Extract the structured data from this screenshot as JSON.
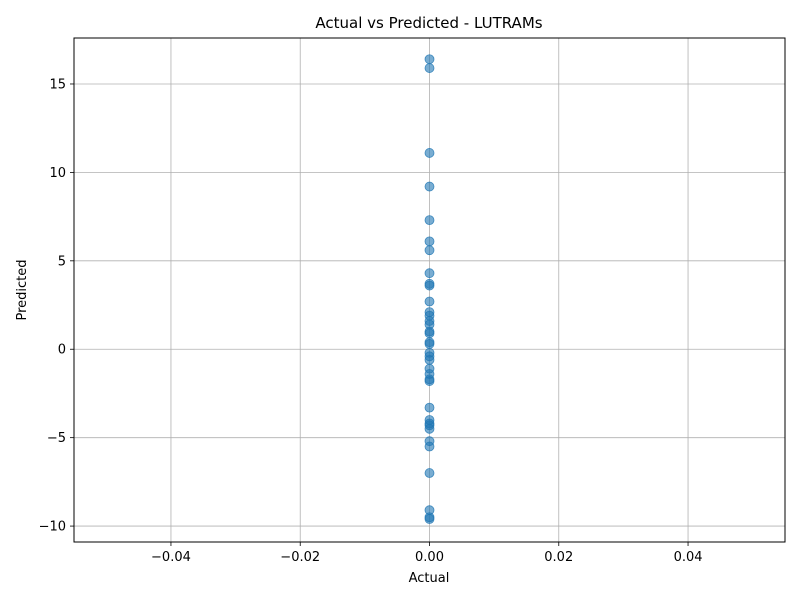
{
  "chart_data": {
    "type": "scatter",
    "title": "Actual vs Predicted - LUTRAMs",
    "xlabel": "Actual",
    "ylabel": "Predicted",
    "xlim": [
      -0.055,
      0.055
    ],
    "ylim": [
      -10.9,
      17.6
    ],
    "xticks": [
      -0.04,
      -0.02,
      0.0,
      0.02,
      0.04
    ],
    "xtick_labels": [
      "−0.04",
      "−0.02",
      "0.00",
      "0.02",
      "0.04"
    ],
    "yticks": [
      -10,
      -5,
      0,
      5,
      10,
      15
    ],
    "ytick_labels": [
      "−10",
      "−5",
      "0",
      "5",
      "10",
      "15"
    ],
    "grid": true,
    "legend": "none",
    "marker_color": "#1f77b4",
    "marker_alpha": 0.6,
    "points": [
      {
        "x": 0,
        "y": 16.4
      },
      {
        "x": 0,
        "y": 15.9
      },
      {
        "x": 0,
        "y": 11.1
      },
      {
        "x": 0,
        "y": 9.2
      },
      {
        "x": 0,
        "y": 7.3
      },
      {
        "x": 0,
        "y": 6.1
      },
      {
        "x": 0,
        "y": 5.6
      },
      {
        "x": 0,
        "y": 4.3
      },
      {
        "x": 0,
        "y": 3.7
      },
      {
        "x": 0,
        "y": 3.6
      },
      {
        "x": 0,
        "y": 2.7
      },
      {
        "x": 0,
        "y": 2.1
      },
      {
        "x": 0,
        "y": 1.9
      },
      {
        "x": 0,
        "y": 1.6
      },
      {
        "x": 0,
        "y": 1.4
      },
      {
        "x": 0,
        "y": 1.0
      },
      {
        "x": 0,
        "y": 0.9
      },
      {
        "x": 0,
        "y": 0.4
      },
      {
        "x": 0,
        "y": 0.3
      },
      {
        "x": 0,
        "y": -0.2
      },
      {
        "x": 0,
        "y": -0.4
      },
      {
        "x": 0,
        "y": -0.6
      },
      {
        "x": 0,
        "y": -1.1
      },
      {
        "x": 0,
        "y": -1.4
      },
      {
        "x": 0,
        "y": -1.7
      },
      {
        "x": 0,
        "y": -1.8
      },
      {
        "x": 0,
        "y": -3.3
      },
      {
        "x": 0,
        "y": -4.0
      },
      {
        "x": 0,
        "y": -4.2
      },
      {
        "x": 0,
        "y": -4.3
      },
      {
        "x": 0,
        "y": -4.5
      },
      {
        "x": 0,
        "y": -5.2
      },
      {
        "x": 0,
        "y": -5.5
      },
      {
        "x": 0,
        "y": -7.0
      },
      {
        "x": 0,
        "y": -9.1
      },
      {
        "x": 0,
        "y": -9.5
      },
      {
        "x": 0,
        "y": -9.6
      }
    ]
  }
}
